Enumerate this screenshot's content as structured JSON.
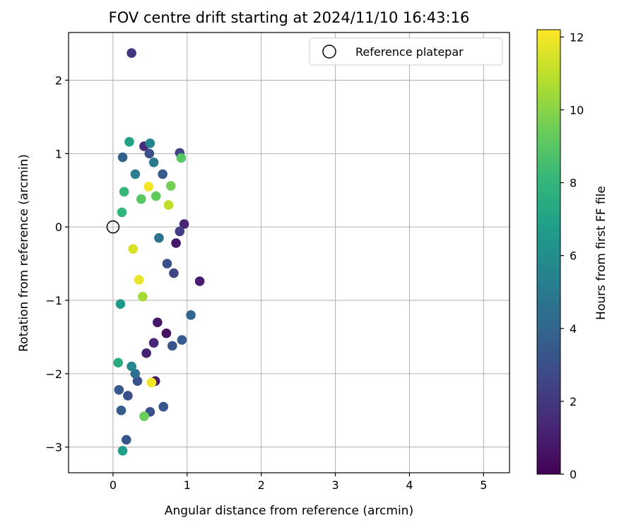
{
  "chart_data": {
    "type": "scatter",
    "title": "FOV centre drift starting at 2024/11/10 16:43:16",
    "xlabel": "Angular distance from reference (arcmin)",
    "ylabel": "Rotation from reference (arcmin)",
    "xlim": [
      -0.6,
      5.35
    ],
    "ylim": [
      -3.35,
      2.65
    ],
    "xticks": [
      0,
      1,
      2,
      3,
      4,
      5
    ],
    "yticks": [
      -3,
      -2,
      -1,
      0,
      1,
      2
    ],
    "grid": true,
    "legend": {
      "placement": "top-right",
      "entries": [
        {
          "label": "Reference platepar",
          "marker": "open-circle"
        }
      ]
    },
    "reference_point": {
      "x": 0,
      "y": 0
    },
    "colorbar": {
      "label": "Hours from first FF file",
      "colormap": "viridis",
      "range": [
        0,
        12.2
      ],
      "ticks": [
        0,
        2,
        4,
        6,
        8,
        10,
        12
      ]
    },
    "colormap_stops": [
      "#440154",
      "#482878",
      "#3e4989",
      "#31688e",
      "#26828e",
      "#1f9e89",
      "#35b779",
      "#6ece58",
      "#b5de2b",
      "#fde725"
    ],
    "series": [
      {
        "x": [
          0.25,
          0.9,
          0.96,
          1.17,
          1.05,
          0.93,
          0.8,
          0.73,
          0.82,
          0.85,
          0.9,
          0.67,
          0.55,
          0.62,
          0.22,
          0.5,
          0.13,
          0.3,
          0.42,
          0.49,
          0.57,
          0.33,
          0.08,
          0.18,
          0.11,
          0.2,
          0.25,
          0.3,
          0.5,
          0.68,
          0.6,
          0.72,
          0.45,
          0.55,
          0.38,
          0.15,
          0.27,
          0.4,
          0.1,
          0.12,
          0.48,
          0.35,
          0.58,
          0.13,
          0.07,
          0.42,
          0.52,
          0.92,
          0.78,
          0.75
        ],
        "y": [
          2.37,
          1.01,
          0.04,
          -0.74,
          -1.2,
          -1.54,
          -1.62,
          -0.5,
          -0.63,
          -0.22,
          -0.06,
          0.72,
          0.88,
          -0.15,
          1.16,
          1.14,
          0.95,
          0.72,
          1.1,
          1.0,
          -2.1,
          -2.1,
          -2.22,
          -2.9,
          -2.5,
          -2.3,
          -1.9,
          -2.0,
          -2.52,
          -2.45,
          -1.3,
          -1.45,
          -1.72,
          -1.58,
          0.38,
          0.48,
          -0.3,
          -0.95,
          -1.05,
          0.2,
          0.55,
          -0.72,
          0.42,
          -3.05,
          -1.85,
          -2.58,
          -2.12,
          0.94,
          0.56,
          0.3
        ],
        "colors": [
          2.0,
          2.5,
          1.2,
          1.0,
          4.0,
          3.5,
          3.2,
          3.0,
          2.6,
          0.8,
          2.2,
          3.4,
          5.0,
          4.6,
          7.0,
          5.5,
          3.8,
          5.2,
          1.5,
          3.0,
          0.9,
          3.1,
          3.4,
          3.3,
          3.6,
          3.0,
          5.6,
          4.4,
          3.0,
          3.3,
          0.8,
          0.6,
          1.1,
          1.3,
          9.0,
          8.2,
          11.5,
          10.5,
          6.5,
          8.0,
          12.0,
          11.8,
          9.2,
          6.8,
          7.5,
          9.4,
          12.0,
          9.0,
          9.6,
          11.0
        ]
      }
    ]
  }
}
